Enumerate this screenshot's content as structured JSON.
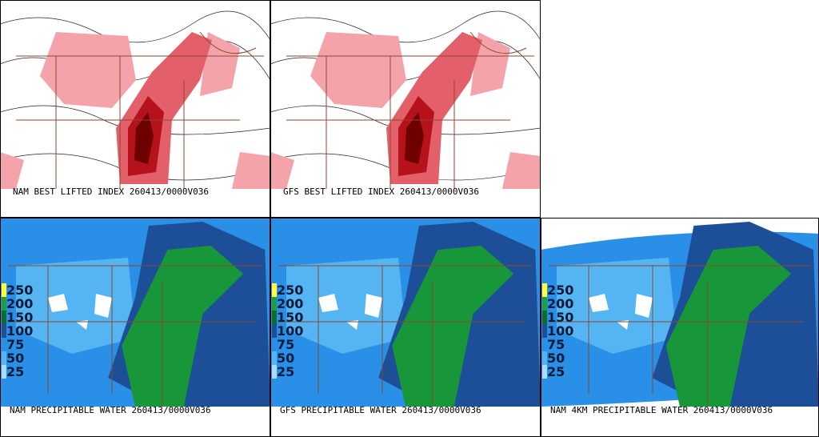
{
  "panels": [
    {
      "label": "NAM BEST LIFTED INDEX 260413/0000V036"
    },
    {
      "label": "GFS BEST LIFTED INDEX 260413/0000V036"
    },
    {
      "label": "NAM PRECIPITABLE WATER 260413/0000V036",
      "colorbar": [
        250,
        200,
        150,
        100,
        75,
        50,
        25
      ]
    },
    {
      "label": "GFS PRECIPITABLE WATER 260413/0000V036",
      "colorbar": [
        250,
        200,
        150,
        100,
        75,
        50,
        25
      ]
    },
    {
      "label": "NAM 4KM PRECIPITABLE WATER 260413/0000V036",
      "colorbar": [
        250,
        200,
        150,
        100,
        75,
        50,
        25
      ]
    }
  ]
}
